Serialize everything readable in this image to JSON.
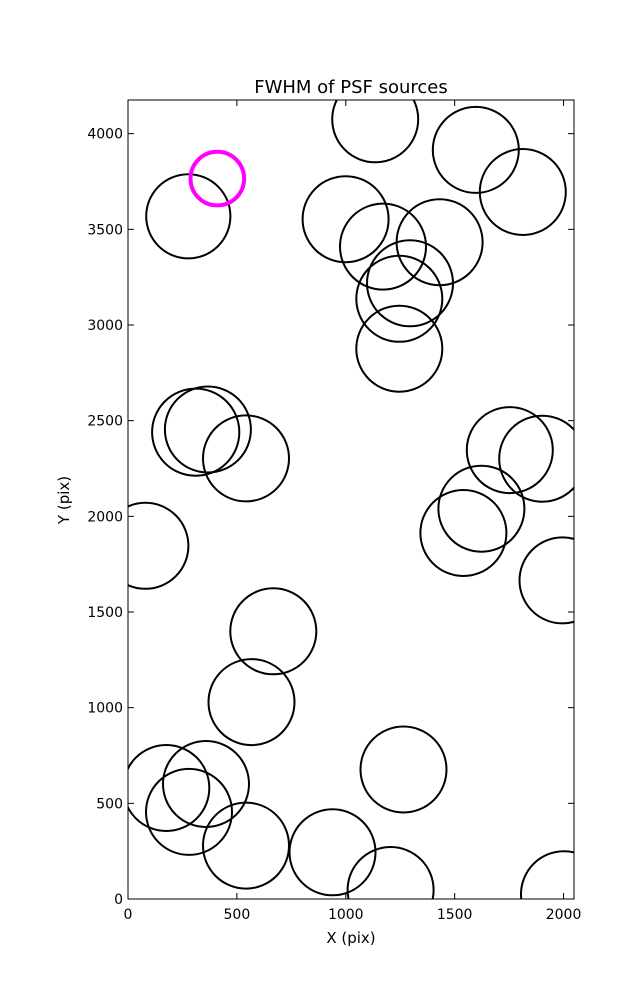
{
  "chart_data": {
    "type": "scatter",
    "title": "FWHM of PSF sources",
    "xlabel": "X (pix)",
    "ylabel": "Y (pix)",
    "xlim": [
      0,
      2048
    ],
    "ylim": [
      0,
      4176
    ],
    "xticks": [
      0,
      500,
      1000,
      1500,
      2000
    ],
    "yticks": [
      0,
      500,
      1000,
      1500,
      2000,
      2500,
      3000,
      3500,
      4000
    ],
    "grid": false,
    "legend": "none",
    "series": [
      {
        "color": "#000000",
        "marker": "open-circle",
        "points": [
          {
            "x": 1135,
            "y": 4075,
            "r": 225
          },
          {
            "x": 1597,
            "y": 3915,
            "r": 225
          },
          {
            "x": 1813,
            "y": 3695,
            "r": 225
          },
          {
            "x": 277,
            "y": 3568,
            "r": 220
          },
          {
            "x": 999,
            "y": 3553,
            "r": 225
          },
          {
            "x": 1171,
            "y": 3410,
            "r": 225
          },
          {
            "x": 1431,
            "y": 3433,
            "r": 225
          },
          {
            "x": 1295,
            "y": 3218,
            "r": 225
          },
          {
            "x": 1246,
            "y": 3137,
            "r": 225
          },
          {
            "x": 1246,
            "y": 2876,
            "r": 225
          },
          {
            "x": 311,
            "y": 2440,
            "r": 228
          },
          {
            "x": 367,
            "y": 2454,
            "r": 225
          },
          {
            "x": 542,
            "y": 2303,
            "r": 225
          },
          {
            "x": 1753,
            "y": 2346,
            "r": 225
          },
          {
            "x": 1902,
            "y": 2301,
            "r": 225
          },
          {
            "x": 1623,
            "y": 2040,
            "r": 225
          },
          {
            "x": 1540,
            "y": 1913,
            "r": 225
          },
          {
            "x": 80,
            "y": 1846,
            "r": 225
          },
          {
            "x": 1995,
            "y": 1665,
            "r": 225
          },
          {
            "x": 667,
            "y": 1399,
            "r": 225
          },
          {
            "x": 567,
            "y": 1029,
            "r": 225
          },
          {
            "x": 1265,
            "y": 677,
            "r": 225
          },
          {
            "x": 176,
            "y": 580,
            "r": 225
          },
          {
            "x": 358,
            "y": 601,
            "r": 225
          },
          {
            "x": 280,
            "y": 455,
            "r": 225
          },
          {
            "x": 542,
            "y": 279,
            "r": 225
          },
          {
            "x": 939,
            "y": 244,
            "r": 225
          },
          {
            "x": 1206,
            "y": 47,
            "r": 225
          },
          {
            "x": 2002,
            "y": 25,
            "r": 225
          }
        ]
      },
      {
        "color": "#ff00ff",
        "marker": "open-circle",
        "points": [
          {
            "x": 410,
            "y": 3765,
            "r": 140
          }
        ]
      }
    ]
  }
}
